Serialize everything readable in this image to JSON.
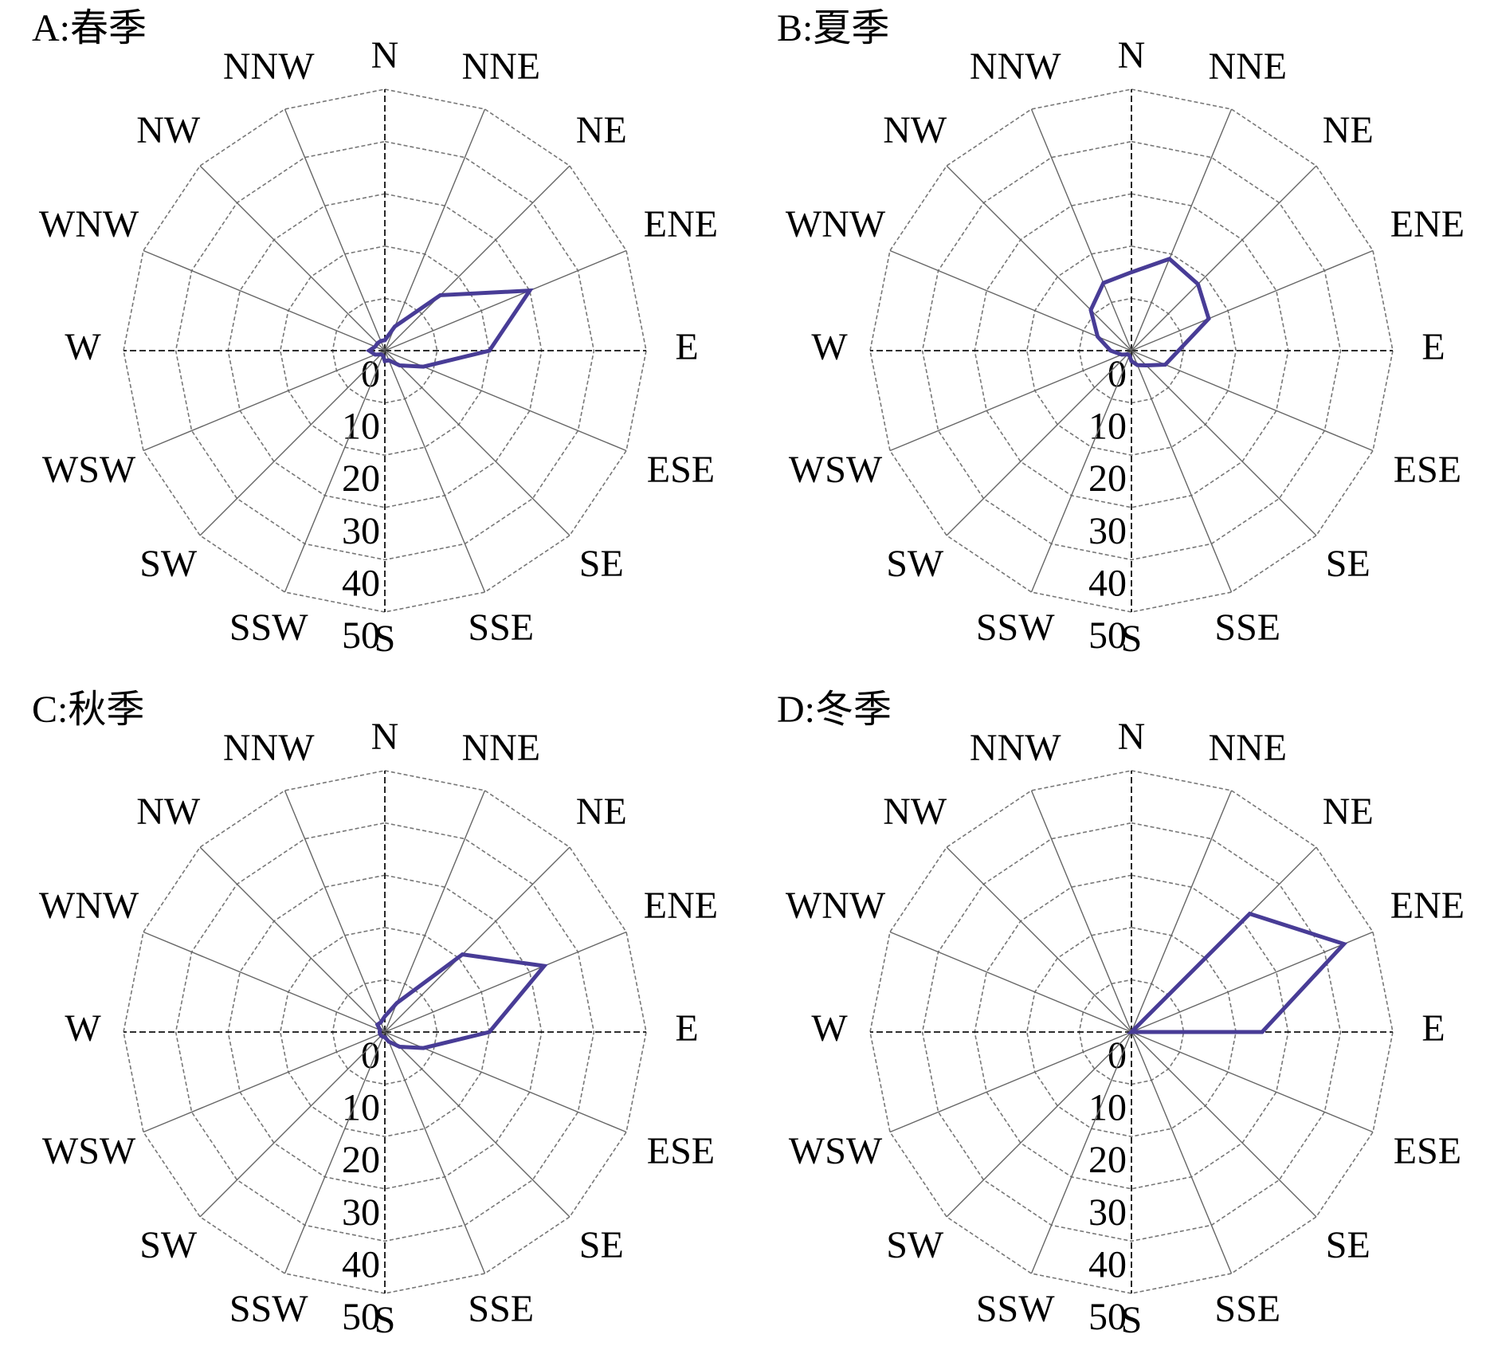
{
  "chart_data": [
    {
      "type": "radar",
      "title": "A:春季",
      "categories": [
        "N",
        "NNE",
        "NE",
        "ENE",
        "E",
        "ESE",
        "SE",
        "SSE",
        "S",
        "SSW",
        "SW",
        "WSW",
        "W",
        "WNW",
        "NW",
        "NNW"
      ],
      "values": [
        2,
        5,
        15,
        30,
        20,
        8,
        4,
        2,
        2,
        1,
        1,
        2,
        3,
        2,
        2,
        2
      ],
      "color": "#483c96",
      "rlim": [
        0,
        50
      ],
      "rticks": [
        0,
        10,
        20,
        30,
        40,
        50
      ]
    },
    {
      "type": "radar",
      "title": "B:夏季",
      "categories": [
        "N",
        "NNE",
        "NE",
        "ENE",
        "E",
        "ESE",
        "SE",
        "SSE",
        "S",
        "SSW",
        "SW",
        "WSW",
        "W",
        "WNW",
        "NW",
        "NNW"
      ],
      "values": [
        15,
        19,
        18,
        16,
        9,
        7,
        4,
        3,
        2,
        1,
        1,
        2,
        4,
        7,
        11,
        14
      ],
      "color": "#483c96",
      "rlim": [
        0,
        50
      ],
      "rticks": [
        0,
        10,
        20,
        30,
        40,
        50
      ]
    },
    {
      "type": "radar",
      "title": "C:秋季",
      "categories": [
        "N",
        "NNE",
        "NE",
        "ENE",
        "E",
        "ESE",
        "SE",
        "SSE",
        "S",
        "SSW",
        "SW",
        "WSW",
        "W",
        "WNW",
        "NW",
        "NNW"
      ],
      "values": [
        3,
        6,
        21,
        33,
        20,
        8,
        4,
        2,
        1,
        1,
        1,
        1,
        1,
        1,
        2,
        2
      ],
      "color": "#483c96",
      "rlim": [
        0,
        50
      ],
      "rticks": [
        0,
        10,
        20,
        30,
        40,
        50
      ]
    },
    {
      "type": "radar",
      "title": "D:冬季",
      "categories": [
        "N",
        "NNE",
        "NE",
        "ENE",
        "E",
        "ESE",
        "SE",
        "SSE",
        "S",
        "SSW",
        "SW",
        "WSW",
        "W",
        "WNW",
        "NW",
        "NNW"
      ],
      "values": [
        0,
        0,
        32,
        44,
        25,
        0,
        0,
        0,
        0,
        0,
        0,
        0,
        0,
        0,
        0,
        0
      ],
      "color": "#483c96",
      "rlim": [
        0,
        50
      ],
      "rticks": [
        0,
        10,
        20,
        30,
        40,
        50
      ]
    }
  ]
}
